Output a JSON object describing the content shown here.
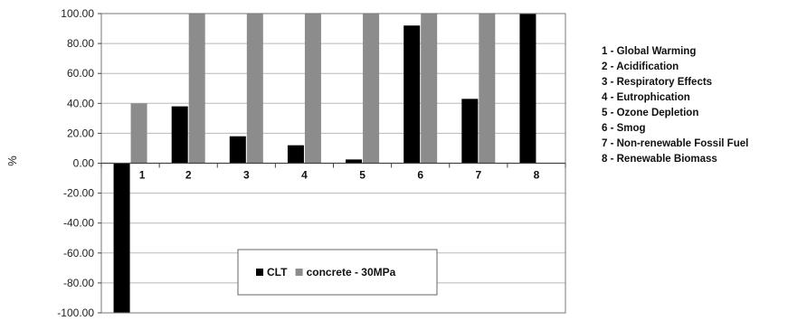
{
  "chart_data": {
    "type": "bar",
    "title": "",
    "xlabel": "",
    "ylabel": "%",
    "ylim": [
      -100,
      100
    ],
    "yticks": [
      "100.00",
      "80.00",
      "60.00",
      "40.00",
      "20.00",
      "0.00",
      "-20.00",
      "-40.00",
      "-60.00",
      "-80.00",
      "-100.00"
    ],
    "ytick_values": [
      100,
      80,
      60,
      40,
      20,
      0,
      -20,
      -40,
      -60,
      -80,
      -100
    ],
    "categories": [
      "1",
      "2",
      "3",
      "4",
      "5",
      "6",
      "7",
      "8"
    ],
    "series": [
      {
        "name": "CLT",
        "color": "#000000",
        "values": [
          -100,
          38,
          18,
          12,
          2.5,
          92,
          43,
          100
        ]
      },
      {
        "name": "concrete - 30MPa",
        "color": "#8c8c8c",
        "values": [
          40,
          100,
          100,
          100,
          100,
          100,
          100,
          0
        ]
      }
    ],
    "grid": true,
    "legend": "inside-bottom-center",
    "category_notes": [
      "1 - Global Warming",
      "2 - Acidification",
      "3 - Respiratory Effects",
      "4 - Eutrophication",
      "5 - Ozone Depletion",
      "6 - Smog",
      "7 - Non-renewable Fossil Fuel",
      "8 - Renewable Biomass"
    ]
  }
}
